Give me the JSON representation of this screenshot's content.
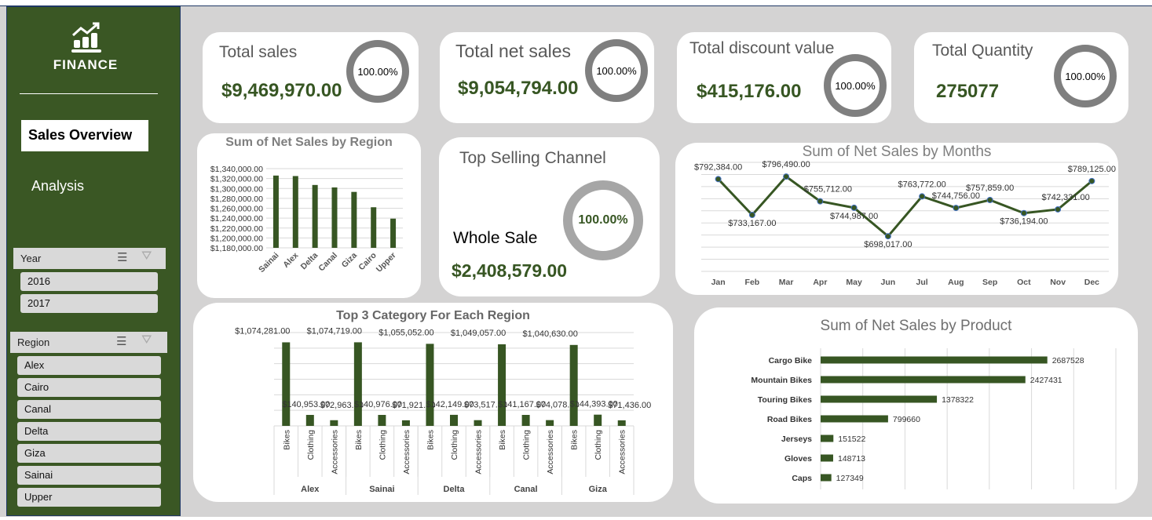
{
  "sidebar": {
    "brand": "FINANCE",
    "nav_active": "Sales Overview",
    "nav_other": "Analysis",
    "year_slicer": {
      "title": "Year",
      "items": [
        "2016",
        "2017"
      ]
    },
    "region_slicer": {
      "title": "Region",
      "items": [
        "Alex",
        "Cairo",
        "Canal",
        "Delta",
        "Giza",
        "Sainai",
        "Upper"
      ]
    }
  },
  "kpis": [
    {
      "title": "Total sales",
      "value": "$9,469,970.00",
      "pct": "100.00%"
    },
    {
      "title": "Total net sales",
      "value": "$9,054,794.00",
      "pct": "100.00%"
    },
    {
      "title": "Total discount value",
      "value": "$415,176.00",
      "pct": "100.00%"
    },
    {
      "title": "Total Quantity",
      "value": "275077",
      "pct": "100.00%"
    }
  ],
  "top_channel": {
    "title": "Top Selling Channel",
    "channel": "Whole Sale",
    "value": "$2,408,579.00",
    "pct": "100.00%"
  },
  "colors": {
    "bar": "#375623",
    "sidebar": "#3a5724"
  },
  "chart_data": [
    {
      "type": "bar",
      "title": "Sum of Net Sales by Region",
      "categories": [
        "Sainai",
        "Alex",
        "Delta",
        "Canal",
        "Giza",
        "Cairo",
        "Upper"
      ],
      "values": [
        1326000,
        1325000,
        1307000,
        1302000,
        1293000,
        1262000,
        1239000
      ],
      "ylim": [
        1180000,
        1340000
      ],
      "yticks": [
        "$1,340,000.00",
        "$1,320,000.00",
        "$1,300,000.00",
        "$1,280,000.00",
        "$1,260,000.00",
        "$1,240,000.00",
        "$1,220,000.00",
        "$1,200,000.00",
        "$1,180,000.00"
      ]
    },
    {
      "type": "line",
      "title": "Sum of Net Sales by Months",
      "categories": [
        "Jan",
        "Feb",
        "Mar",
        "Apr",
        "May",
        "Jun",
        "Jul",
        "Aug",
        "Sep",
        "Oct",
        "Nov",
        "Dec"
      ],
      "values": [
        792384,
        733167,
        796490,
        755712,
        744987,
        698017,
        763772,
        744756,
        757859,
        736194,
        742331,
        789125
      ],
      "labels": [
        "$792,384.00",
        "$733,167.00",
        "$796,490.00",
        "$755,712.00",
        "$744,987.00",
        "$698,017.00",
        "$763,772.00",
        "$744,756.00",
        "$757,859.00",
        "$736,194.00",
        "$742,331.00",
        "$789,125.00"
      ],
      "ylim": [
        640000,
        820000
      ]
    },
    {
      "type": "bar",
      "title": "Top 3 Category For Each Region",
      "groups": [
        "Alex",
        "Sainai",
        "Delta",
        "Canal",
        "Giza"
      ],
      "categories": [
        "Bikes",
        "Clothing",
        "Accessories"
      ],
      "values": [
        [
          1074281,
          140953,
          72963
        ],
        [
          1074719,
          140976,
          71921
        ],
        [
          1055052,
          142149,
          73517
        ],
        [
          1049057,
          141167,
          74078
        ],
        [
          1040630,
          144393,
          71436
        ]
      ],
      "labels": [
        [
          "$1,074,281.00",
          "$140,953.00",
          "$72,963.00"
        ],
        [
          "$1,074,719.00",
          "$140,976.00",
          "$71,921.00"
        ],
        [
          "$1,055,052.00",
          "$142,149.00",
          "$73,517.00"
        ],
        [
          "$1,049,057.00",
          "$141,167.00",
          "$74,078.00"
        ],
        [
          "$1,040,630.00",
          "$144,393.00",
          "$71,436.00"
        ]
      ],
      "ylim": [
        0,
        1200000
      ]
    },
    {
      "type": "bar",
      "orientation": "horizontal",
      "title": "Sum of Net Sales by Product",
      "categories": [
        "Cargo Bike",
        "Mountain Bikes",
        "Touring Bikes",
        "Road Bikes",
        "Jerseys",
        "Gloves",
        "Caps"
      ],
      "values": [
        2687528,
        2427431,
        1378322,
        799660,
        151522,
        148713,
        127349
      ],
      "xlim": [
        0,
        3500000
      ]
    }
  ]
}
